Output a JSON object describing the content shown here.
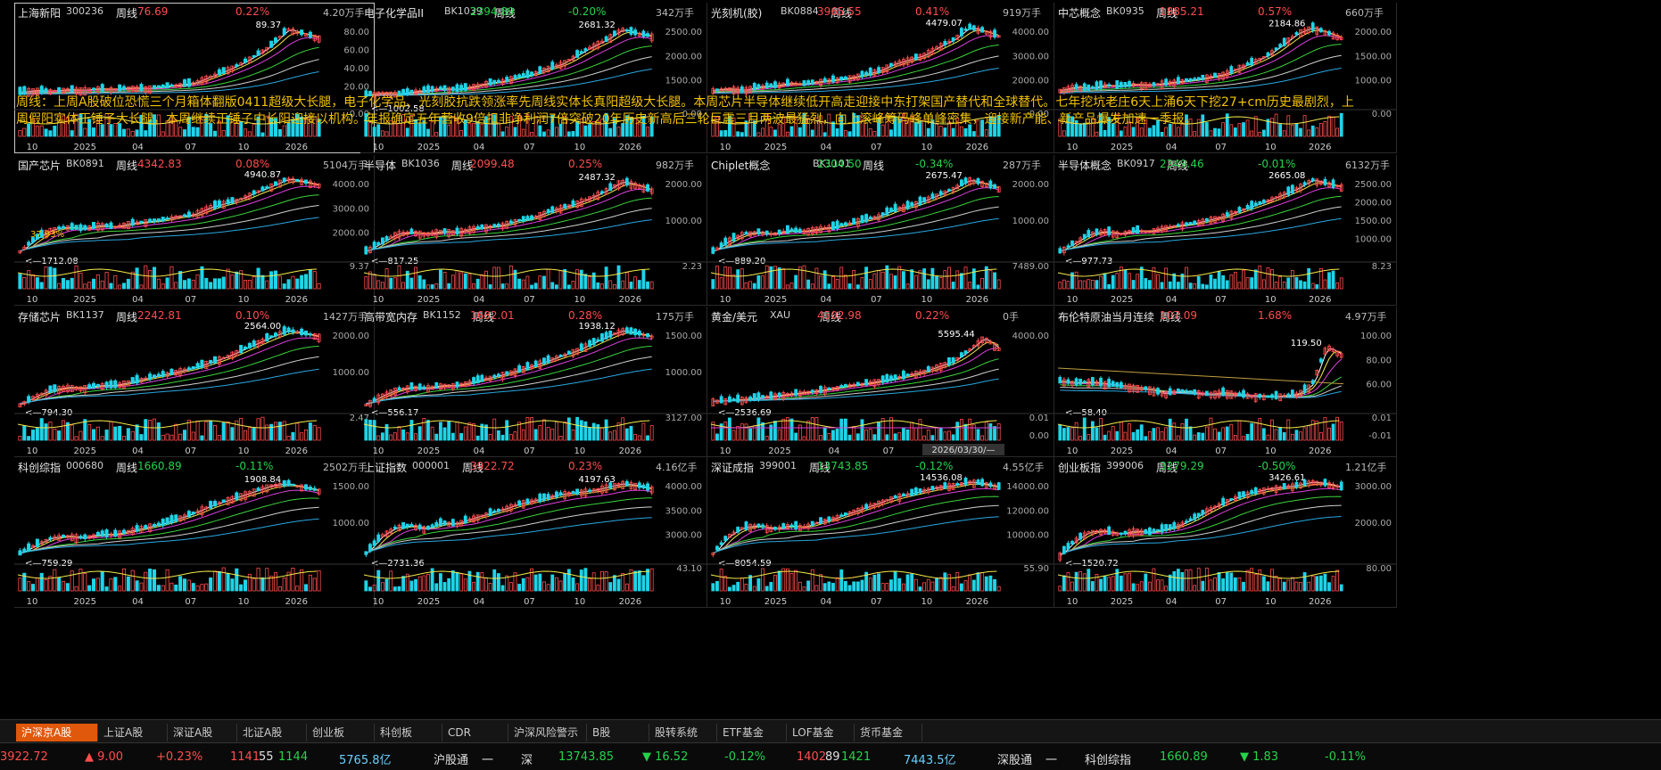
{
  "colors": {
    "up": "#ff4d4d",
    "down": "#25d34a",
    "ma5": "#ffffff",
    "ma10": "#f5e94b",
    "ma20": "#e040e0",
    "ma60": "#3cd33c",
    "ma120": "#d0d0d0",
    "ma250": "#2aa7e0"
  },
  "panels": [
    {
      "name": "上海新阳",
      "code": "300236",
      "period": "周线",
      "price": "76.69",
      "pct": "0.22%",
      "dir": "up",
      "vol": "4.20万手",
      "peak": "89.37",
      "low": "",
      "yticks": [
        "80.00",
        "60.00",
        "40.00",
        "20.00"
      ],
      "vticks": [
        "0.00"
      ],
      "xlabels": [
        "10",
        "2025",
        "04",
        "07",
        "10",
        "2026"
      ],
      "curve": [
        0.18,
        0.2,
        0.19,
        0.21,
        0.2,
        0.22,
        0.21,
        0.23,
        0.22,
        0.24,
        0.26,
        0.28,
        0.35,
        0.42,
        0.5,
        0.6,
        0.72,
        0.9,
        0.85,
        0.8
      ]
    },
    {
      "name": "电子化学品II",
      "code": "BK1039",
      "period": "周线",
      "price": "2394.89",
      "pct": "-0.20%",
      "dir": "dn",
      "vol": "342万手",
      "peak": "2681.32",
      "low": "1002.58",
      "yticks": [
        "2500.00",
        "2000.00",
        "1500.00"
      ],
      "vticks": [
        "0.00"
      ],
      "xlabels": [
        "10",
        "2025",
        "04",
        "07",
        "10",
        "2026"
      ],
      "curve": [
        0.15,
        0.17,
        0.16,
        0.18,
        0.2,
        0.22,
        0.21,
        0.24,
        0.28,
        0.3,
        0.35,
        0.38,
        0.45,
        0.5,
        0.6,
        0.7,
        0.78,
        0.9,
        0.85,
        0.82
      ]
    },
    {
      "name": "光刻机(胶)",
      "code": "BK0884",
      "period": "周线",
      "price": "3965.55",
      "pct": "0.41%",
      "dir": "up",
      "vol": "919万手",
      "peak": "4479.07",
      "low": "",
      "yticks": [
        "4000.00",
        "3000.00",
        "2000.00"
      ],
      "vticks": [
        "0.00"
      ],
      "xlabels": [
        "10",
        "2025",
        "04",
        "07",
        "10",
        "2026"
      ],
      "curve": [
        0.2,
        0.22,
        0.2,
        0.24,
        0.25,
        0.28,
        0.27,
        0.3,
        0.32,
        0.34,
        0.38,
        0.42,
        0.5,
        0.55,
        0.6,
        0.7,
        0.78,
        0.92,
        0.88,
        0.82
      ]
    },
    {
      "name": "中芯概念",
      "code": "BK0935",
      "period": "周线",
      "price": "1885.21",
      "pct": "0.57%",
      "dir": "up",
      "vol": "660万手",
      "peak": "2184.86",
      "low": "",
      "yticks": [
        "2000.00",
        "1500.00",
        "1000.00"
      ],
      "vticks": [
        "0.00"
      ],
      "xlabels": [
        "10",
        "2025",
        "04",
        "07",
        "10",
        "2026"
      ],
      "curve": [
        0.2,
        0.24,
        0.22,
        0.26,
        0.25,
        0.27,
        0.26,
        0.28,
        0.3,
        0.32,
        0.35,
        0.38,
        0.45,
        0.52,
        0.6,
        0.72,
        0.85,
        0.92,
        0.86,
        0.8
      ]
    },
    {
      "name": "国产芯片",
      "code": "BK0891",
      "period": "周线",
      "price": "4342.83",
      "pct": "0.08%",
      "dir": "up",
      "vol": "5104万手",
      "peak": "4940.87",
      "low": "1712.08",
      "extra": "37.93%",
      "yticks": [
        "4000.00",
        "3000.00",
        "2000.00"
      ],
      "vticks": [
        "9.37"
      ],
      "xlabels": [
        "10",
        "2025",
        "04",
        "07",
        "10",
        "2026"
      ],
      "curve": [
        0.1,
        0.25,
        0.35,
        0.38,
        0.36,
        0.4,
        0.38,
        0.42,
        0.44,
        0.46,
        0.5,
        0.52,
        0.6,
        0.65,
        0.7,
        0.78,
        0.85,
        0.93,
        0.9,
        0.86
      ]
    },
    {
      "name": "半导体",
      "code": "BK1036",
      "period": "周线",
      "price": "2099.48",
      "pct": "0.25%",
      "dir": "up",
      "vol": "982万手",
      "peak": "2487.32",
      "low": "817.25",
      "yticks": [
        "2000.00",
        "1000.00"
      ],
      "vticks": [
        "2.23"
      ],
      "xlabels": [
        "10",
        "2025",
        "04",
        "07",
        "10",
        "2026"
      ],
      "curve": [
        0.1,
        0.2,
        0.3,
        0.32,
        0.3,
        0.33,
        0.32,
        0.36,
        0.38,
        0.4,
        0.45,
        0.48,
        0.55,
        0.6,
        0.65,
        0.72,
        0.8,
        0.9,
        0.86,
        0.8
      ]
    },
    {
      "name": "Chiplet概念",
      "code": "BK1101",
      "period": "周线",
      "price": "2304.50",
      "pct": "-0.34%",
      "dir": "dn",
      "vol": "287万手",
      "peak": "2675.47",
      "low": "889.20",
      "yticks": [
        "2000.00",
        "1000.00"
      ],
      "vticks": [
        "7489.00"
      ],
      "xlabels": [
        "10",
        "2025",
        "04",
        "07",
        "10",
        "2026"
      ],
      "curve": [
        0.1,
        0.22,
        0.3,
        0.32,
        0.3,
        0.34,
        0.33,
        0.36,
        0.38,
        0.42,
        0.46,
        0.5,
        0.58,
        0.62,
        0.68,
        0.75,
        0.82,
        0.92,
        0.88,
        0.82
      ]
    },
    {
      "name": "半导体概念",
      "code": "BK0917",
      "period": "周线",
      "price": "2349.46",
      "pct": "-0.01%",
      "dir": "dn",
      "vol": "6132万手",
      "peak": "2665.08",
      "low": "977.73",
      "yticks": [
        "2500.00",
        "2000.00",
        "1500.00",
        "1000.00"
      ],
      "vticks": [
        "8.23"
      ],
      "xlabels": [
        "10",
        "2025",
        "04",
        "07",
        "10",
        "2026"
      ],
      "curve": [
        0.1,
        0.2,
        0.3,
        0.33,
        0.3,
        0.34,
        0.33,
        0.37,
        0.4,
        0.42,
        0.46,
        0.5,
        0.56,
        0.62,
        0.68,
        0.75,
        0.82,
        0.92,
        0.88,
        0.84
      ]
    },
    {
      "name": "存储芯片",
      "code": "BK1137",
      "period": "周线",
      "price": "2242.81",
      "pct": "0.10%",
      "dir": "up",
      "vol": "1427万手",
      "peak": "2564.00",
      "low": "794.30",
      "yticks": [
        "2000.00",
        "1000.00"
      ],
      "vticks": [
        "2.47"
      ],
      "xlabels": [
        "10",
        "2025",
        "04",
        "07",
        "10",
        "2026"
      ],
      "curve": [
        0.08,
        0.18,
        0.25,
        0.28,
        0.27,
        0.3,
        0.3,
        0.34,
        0.38,
        0.42,
        0.46,
        0.5,
        0.56,
        0.62,
        0.7,
        0.78,
        0.86,
        0.93,
        0.9,
        0.86
      ]
    },
    {
      "name": "高带宽内存",
      "code": "BK1152",
      "period": "周线",
      "price": "1682.01",
      "pct": "0.28%",
      "dir": "up",
      "vol": "175万手",
      "peak": "1938.12",
      "low": "556.17",
      "yticks": [
        "1500.00",
        "1000.00"
      ],
      "vticks": [
        "3127.00"
      ],
      "xlabels": [
        "10",
        "2025",
        "04",
        "07",
        "10",
        "2026"
      ],
      "curve": [
        0.08,
        0.18,
        0.25,
        0.28,
        0.27,
        0.3,
        0.3,
        0.34,
        0.38,
        0.42,
        0.47,
        0.52,
        0.58,
        0.64,
        0.7,
        0.78,
        0.86,
        0.93,
        0.9,
        0.86
      ]
    },
    {
      "name": "黄金/美元",
      "code": "XAU",
      "period": "周线",
      "price": "4502.98",
      "pct": "0.22%",
      "dir": "up",
      "vol": "0手",
      "peak": "5595.44",
      "low": "2536.69",
      "yticks": [
        "4000.00"
      ],
      "vticks": [
        "0.01",
        "0.00"
      ],
      "xlabels": [
        "10",
        "2025",
        "04",
        "07",
        "10"
      ],
      "dateLabel": "2026/03/30/—",
      "curve": [
        0.12,
        0.13,
        0.14,
        0.16,
        0.18,
        0.2,
        0.22,
        0.24,
        0.27,
        0.3,
        0.32,
        0.35,
        0.38,
        0.42,
        0.46,
        0.52,
        0.58,
        0.7,
        0.85,
        0.72
      ]
    },
    {
      "name": "布伦特原油当月连续",
      "code": "",
      "period": "周线",
      "price": "107.09",
      "pct": "1.68%",
      "dir": "up",
      "vol": "4.97万手",
      "peak": "119.50",
      "low": "58.40",
      "yticks": [
        "100.00",
        "80.00",
        "60.00"
      ],
      "vticks": [
        "0.01",
        "-0.01"
      ],
      "xlabels": [
        "10",
        "2025",
        "04",
        "07",
        "10",
        "2026"
      ],
      "curve": [
        0.35,
        0.33,
        0.34,
        0.32,
        0.3,
        0.28,
        0.26,
        0.2,
        0.24,
        0.22,
        0.2,
        0.22,
        0.2,
        0.18,
        0.17,
        0.18,
        0.2,
        0.3,
        0.75,
        0.65
      ]
    },
    {
      "name": "科创综指",
      "code": "000680",
      "period": "周线",
      "price": "1660.89",
      "pct": "-0.11%",
      "dir": "dn",
      "vol": "2502万手",
      "peak": "1908.84",
      "low": "759.29",
      "yticks": [
        "1500.00",
        "1000.00"
      ],
      "vticks": [],
      "xlabels": [
        "10",
        "2025",
        "04",
        "07",
        "10",
        "2026"
      ],
      "curve": [
        0.1,
        0.2,
        0.28,
        0.3,
        0.28,
        0.32,
        0.32,
        0.36,
        0.4,
        0.44,
        0.5,
        0.56,
        0.64,
        0.7,
        0.76,
        0.82,
        0.88,
        0.9,
        0.86,
        0.82
      ]
    },
    {
      "name": "上证指数",
      "code": "000001",
      "period": "周线",
      "price": "3922.72",
      "pct": "0.23%",
      "dir": "up",
      "vol": "4.16亿手",
      "peak": "4197.63",
      "low": "2731.36",
      "yticks": [
        "4000.00",
        "3500.00",
        "3000.00"
      ],
      "vticks": [
        "43.10"
      ],
      "xlabels": [
        "10",
        "2025",
        "04",
        "07",
        "10",
        "2026"
      ],
      "curve": [
        0.1,
        0.3,
        0.4,
        0.42,
        0.38,
        0.45,
        0.44,
        0.5,
        0.55,
        0.6,
        0.66,
        0.7,
        0.74,
        0.78,
        0.8,
        0.82,
        0.86,
        0.9,
        0.88,
        0.84
      ]
    },
    {
      "name": "深证成指",
      "code": "399001",
      "period": "周线",
      "price": "13743.85",
      "pct": "-0.12%",
      "dir": "dn",
      "vol": "4.55亿手",
      "peak": "14536.08",
      "low": "8054.59",
      "yticks": [
        "14000.00",
        "12000.00",
        "10000.00"
      ],
      "vticks": [
        "55.90"
      ],
      "xlabels": [
        "10",
        "2025",
        "04",
        "07",
        "10",
        "2026"
      ],
      "curve": [
        0.1,
        0.3,
        0.4,
        0.42,
        0.38,
        0.42,
        0.4,
        0.46,
        0.5,
        0.56,
        0.62,
        0.68,
        0.74,
        0.78,
        0.82,
        0.86,
        0.88,
        0.92,
        0.9,
        0.86
      ]
    },
    {
      "name": "创业板指",
      "code": "399006",
      "period": "周线",
      "price": "3279.29",
      "pct": "-0.50%",
      "dir": "dn",
      "vol": "1.21亿手",
      "peak": "3426.61",
      "low": "1520.72",
      "yticks": [
        "3000.00",
        "2000.00"
      ],
      "vticks": [
        "80.00"
      ],
      "xlabels": [
        "10",
        "2025",
        "04",
        "07",
        "10",
        "2026"
      ],
      "curve": [
        0.08,
        0.25,
        0.35,
        0.36,
        0.32,
        0.36,
        0.34,
        0.38,
        0.42,
        0.5,
        0.6,
        0.68,
        0.75,
        0.8,
        0.84,
        0.86,
        0.88,
        0.92,
        0.9,
        0.86
      ]
    }
  ],
  "annotation": "周线：上周A股破位恐慌三个月箱体翻版0411超级大长腿，电子化学品、光刻胶抗跌领涨率先周线实体长真阳超级大长腿。本周芯片半导体继续低开高走迎接中东打架国产替代和全球替代。七年挖坑老庄6天上涌6天下挖27+cm历史最剧烈，上周假阳实体正锤子大长腿，本周继续正锤子中长阳迎接以机构。年报确定五年营收9倍扣非净利润7倍突破20年历史新高后三轮巨震三月两波最猛烈，向上滚峰筹码峰单峰密集，迎接新产能、新产品爆发加速一季报。",
  "tabs": [
    "沪深京A股",
    "上证A股",
    "深证A股",
    "北证A股",
    "创业板",
    "科创板",
    "CDR",
    "沪深风险警示",
    "B股",
    "股转系统",
    "ETF基金",
    "LOF基金",
    "货币基金"
  ],
  "status": {
    "sh_index": "3922.72",
    "sh_chg": "▲ 9.00",
    "sh_pct": "+0.23%",
    "sh_up": "1141",
    "sh_flat": "55",
    "sh_down": "1144",
    "sh_amt": "5765.8亿",
    "hgt": "沪股通",
    "hgt_val": "一",
    "sz_label": "深",
    "sz_index": "13743.85",
    "sz_chg": "▼ 16.52",
    "sz_pct": "-0.12%",
    "sz_up": "1402",
    "sz_flat": "89",
    "sz_down": "1421",
    "sz_amt": "7443.5亿",
    "sgt": "深股通",
    "sgt_val": "一",
    "kc_label": "科创综指",
    "kc_index": "1660.89",
    "kc_chg": "▼ 1.83",
    "kc_pct": "-0.11%"
  }
}
